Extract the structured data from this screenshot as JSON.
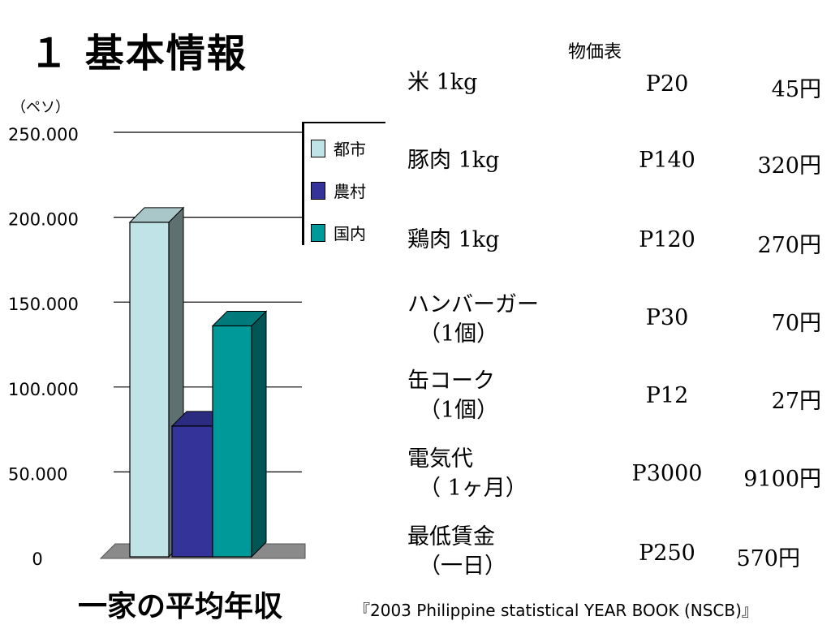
{
  "slide": {
    "title": "１ 基本情報",
    "caption": "一家の平均年収",
    "source": "『2003 Philippine statistical YEAR BOOK (NSCB)』"
  },
  "chart_data": {
    "type": "bar",
    "ylabel": "（ペソ）",
    "ylim": [
      0,
      250000
    ],
    "y_ticks": [
      "0",
      "50.000",
      "100.000",
      "150.000",
      "200.000",
      "250.000"
    ],
    "y_tick_values": [
      0,
      50000,
      100000,
      150000,
      200000,
      250000
    ],
    "categories": [
      "都市",
      "農村",
      "国内"
    ],
    "values": [
      197000,
      77000,
      136000
    ],
    "colors": [
      "#bfe3e6",
      "#333399",
      "#009999"
    ],
    "side_colors": [
      "#5f7070",
      "#151552",
      "#005555"
    ],
    "top_colors": [
      "#a9c6c8",
      "#2b2b80",
      "#007a7a"
    ],
    "legend": [
      "都市",
      "農村",
      "国内"
    ],
    "legend_position": "top-right",
    "grid": true
  },
  "price_table": {
    "title": "物価表",
    "rows": [
      {
        "name": "米 1kg",
        "sub": "",
        "peso": "P20",
        "yen": "45円"
      },
      {
        "name": "豚肉 1kg",
        "sub": "",
        "peso": "P140",
        "yen": "320円"
      },
      {
        "name": "鶏肉 1kg",
        "sub": "",
        "peso": "P120",
        "yen": "270円"
      },
      {
        "name": "ハンバーガー",
        "sub": "（1個）",
        "peso": "P30",
        "yen": "70円"
      },
      {
        "name": "缶コーク",
        "sub": "（1個）",
        "peso": "P12",
        "yen": "27円"
      },
      {
        "name": "電気代",
        "sub": "（ 1ヶ月）",
        "peso": "P3000",
        "yen": "9100円"
      },
      {
        "name": "最低賃金",
        "sub": "（一日）",
        "peso": "P250",
        "yen": "570円"
      }
    ]
  }
}
